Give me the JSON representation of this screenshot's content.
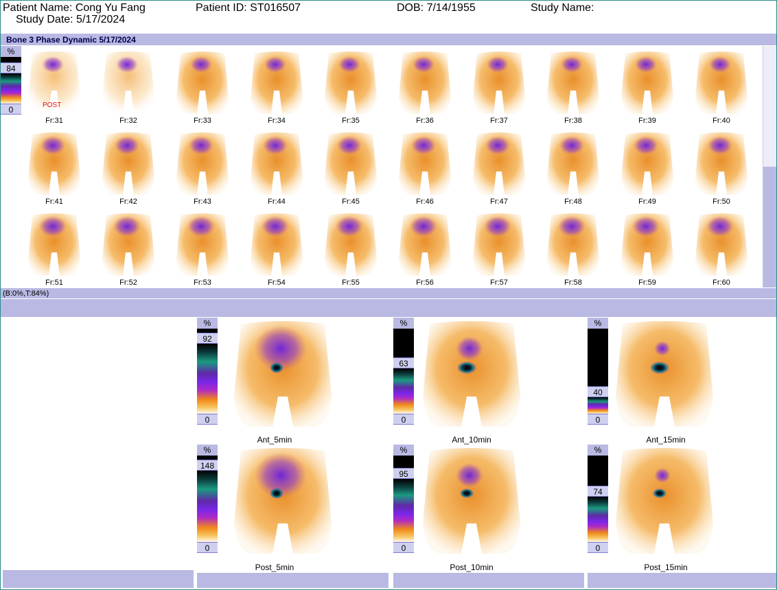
{
  "header": {
    "patient_name": "Patient Name: Cong Yu Fang",
    "patient_id": "Patient ID: ST016507",
    "dob": "DOB: 7/14/1955",
    "study_name": "Study Name:",
    "study_date": "Study Date: 5/17/2024"
  },
  "dynamic": {
    "title": "Bone 3 Phase Dynamic 5/17/2024",
    "scale": {
      "pct": "%",
      "max": "84",
      "min": "0"
    },
    "post_label": "POST",
    "frames": [
      "Fr:31",
      "Fr:32",
      "Fr:33",
      "Fr:34",
      "Fr:35",
      "Fr:36",
      "Fr:37",
      "Fr:38",
      "Fr:39",
      "Fr:40",
      "Fr:41",
      "Fr:42",
      "Fr:43",
      "Fr:44",
      "Fr:45",
      "Fr:46",
      "Fr:47",
      "Fr:48",
      "Fr:49",
      "Fr:50",
      "Fr:51",
      "Fr:52",
      "Fr:53",
      "Fr:54",
      "Fr:55",
      "Fr:56",
      "Fr:57",
      "Fr:58",
      "Fr:59",
      "Fr:60"
    ],
    "status": "(B:0%,T:84%)"
  },
  "statics": [
    {
      "label": "Ant_5min",
      "pct": "%",
      "max": "92",
      "min": "0"
    },
    {
      "label": "Ant_10min",
      "pct": "%",
      "max": "63",
      "min": "0"
    },
    {
      "label": "Ant_15min",
      "pct": "%",
      "max": "40",
      "min": "0"
    },
    {
      "label": "Post_5min",
      "pct": "%",
      "max": "148",
      "min": "0"
    },
    {
      "label": "Post_10min",
      "pct": "%",
      "max": "95",
      "min": "0"
    },
    {
      "label": "Post_15min",
      "pct": "%",
      "max": "74",
      "min": "0"
    }
  ],
  "colors": {
    "banner": "#b9b9e3",
    "tracer_orange": "#f09a24",
    "tracer_purple": "#7a26e8",
    "border": "#2a8a8a"
  }
}
